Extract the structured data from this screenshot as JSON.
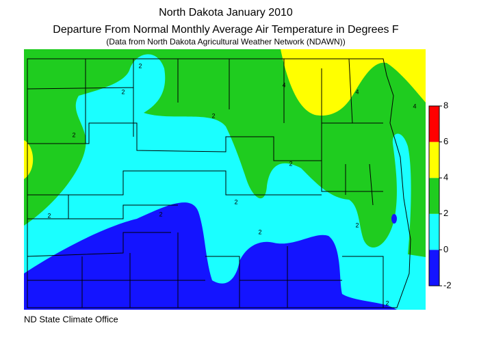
{
  "header": {
    "title": "North Dakota January 2010",
    "subtitle": "Departure From Normal Monthly Average Air Temperature in Degrees F",
    "note": "(Data from North Dakota Agricultural Weather Network (NDAWN))"
  },
  "legend": {
    "range": [
      -2,
      8
    ],
    "ticks": [
      8,
      6,
      4,
      2,
      0,
      -2
    ],
    "colors": [
      "#1414ff",
      "#1affff",
      "#1fcc1f",
      "#ffff00",
      "#ff0000"
    ]
  },
  "contour_labels": [
    2,
    2,
    2,
    2,
    2,
    2,
    2,
    2,
    2,
    2,
    2,
    4,
    4,
    4
  ],
  "footer": "ND State Climate Office"
}
